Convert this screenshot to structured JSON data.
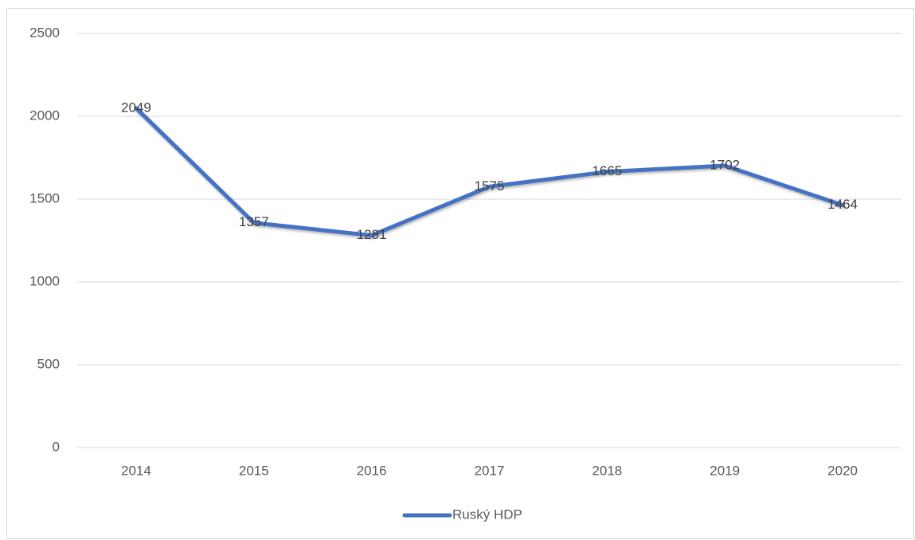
{
  "chart_data": {
    "type": "line",
    "categories": [
      "2014",
      "2015",
      "2016",
      "2017",
      "2018",
      "2019",
      "2020"
    ],
    "series": [
      {
        "name": "Ruský HDP",
        "color": "#4472c4",
        "values": [
          2049,
          1357,
          1281,
          1575,
          1665,
          1702,
          1464
        ]
      }
    ],
    "ylim": [
      0,
      2500
    ],
    "yticks": [
      0,
      500,
      1000,
      1500,
      2000,
      2500
    ],
    "grid": true,
    "legend": "bottom"
  }
}
